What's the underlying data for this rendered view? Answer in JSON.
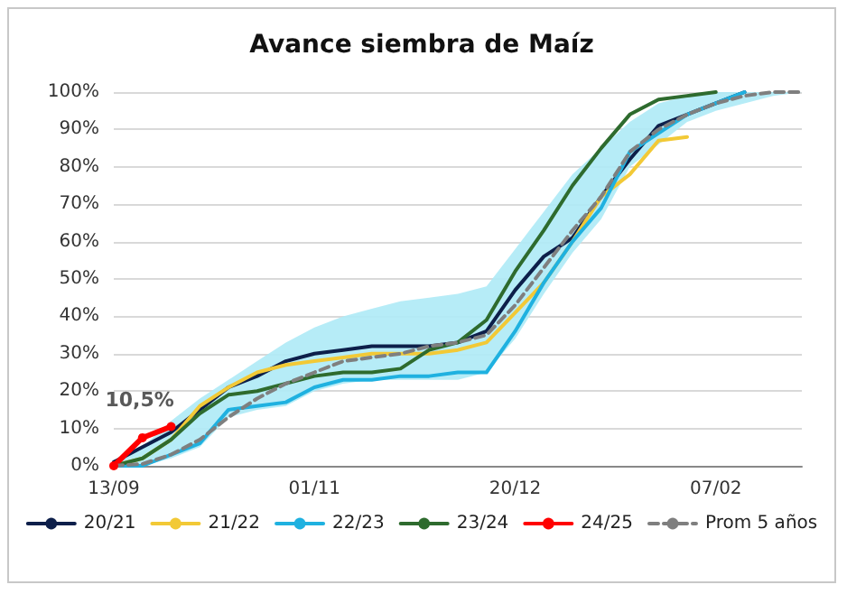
{
  "chart_data": {
    "type": "line",
    "title": "Avance siembra de Maíz",
    "categories": [
      "13/09",
      null,
      null,
      null,
      null,
      null,
      null,
      "01/11",
      null,
      null,
      null,
      null,
      null,
      null,
      "20/12",
      null,
      null,
      null,
      null,
      null,
      null,
      "07/02",
      null,
      null,
      null
    ],
    "series": [
      {
        "name": "20/21",
        "color": "#0d1f4a",
        "values": [
          1,
          5,
          9,
          15,
          21,
          24,
          28,
          30,
          31,
          32,
          32,
          32,
          33,
          36,
          47,
          56,
          61,
          72,
          82,
          91,
          94,
          97,
          100,
          null,
          null
        ]
      },
      {
        "name": "21/22",
        "color": "#f2c936",
        "values": [
          0,
          2,
          7,
          16,
          21,
          25,
          27,
          28,
          29,
          30,
          30,
          30,
          31,
          33,
          41,
          49,
          60,
          72,
          78,
          87,
          88,
          null,
          null,
          null,
          null
        ]
      },
      {
        "name": "22/23",
        "color": "#1fb1e0",
        "values": [
          0,
          0,
          3,
          6,
          15,
          16,
          17,
          21,
          23,
          23,
          24,
          24,
          25,
          25,
          36,
          49,
          60,
          69,
          84,
          89,
          94,
          97,
          100,
          null,
          null
        ]
      },
      {
        "name": "23/24",
        "color": "#2e6b2e",
        "values": [
          0,
          2,
          7,
          14,
          19,
          20,
          22,
          24,
          25,
          25,
          26,
          31,
          33,
          39,
          52,
          63,
          75,
          85,
          94,
          98,
          99,
          100,
          null,
          null,
          null
        ]
      },
      {
        "name": "24/25",
        "color": "#ff0000",
        "marker": "circle",
        "values": [
          0,
          7.5,
          10.5,
          null,
          null,
          null,
          null,
          null,
          null,
          null,
          null,
          null,
          null,
          null,
          null,
          null,
          null,
          null,
          null,
          null,
          null,
          null,
          null,
          null,
          null
        ],
        "value_labels": [
          null,
          null,
          "10,5%",
          null,
          null,
          null,
          null,
          null,
          null,
          null,
          null,
          null,
          null,
          null,
          null,
          null,
          null,
          null,
          null,
          null,
          null,
          null,
          null,
          null,
          null
        ]
      },
      {
        "name": "Prom 5 años",
        "color": "#7f7f7f",
        "line_style": "dashed",
        "values": [
          0,
          0.5,
          3,
          7,
          13,
          18,
          22,
          25,
          28,
          29,
          30,
          32,
          33,
          35,
          43,
          53,
          63,
          72,
          84,
          90,
          94,
          97,
          99,
          100,
          100
        ],
        "lower": [
          0,
          0,
          2,
          5,
          13,
          15,
          16,
          20,
          22,
          23,
          23,
          23,
          23,
          25,
          34,
          46,
          57,
          66,
          80,
          86,
          92,
          95,
          97,
          99,
          100
        ],
        "upper": [
          1,
          5,
          12,
          18,
          23,
          28,
          33,
          37,
          40,
          42,
          44,
          45,
          46,
          48,
          58,
          68,
          78,
          85,
          92,
          97,
          99,
          100,
          100,
          100,
          100
        ]
      }
    ],
    "ylim": [
      0,
      100
    ],
    "yticks": [
      {
        "value": 0,
        "label": "0%"
      },
      {
        "value": 10,
        "label": "10%"
      },
      {
        "value": 20,
        "label": "20%"
      },
      {
        "value": 30,
        "label": "30%"
      },
      {
        "value": 40,
        "label": "40%"
      },
      {
        "value": 50,
        "label": "50%"
      },
      {
        "value": 60,
        "label": "60%"
      },
      {
        "value": 70,
        "label": "70%"
      },
      {
        "value": 80,
        "label": "80%"
      },
      {
        "value": 90,
        "label": "90%"
      },
      {
        "value": 100,
        "label": "100%"
      }
    ],
    "grid": "y",
    "legend": "bottom",
    "marker": "none",
    "line_style": "solid"
  }
}
